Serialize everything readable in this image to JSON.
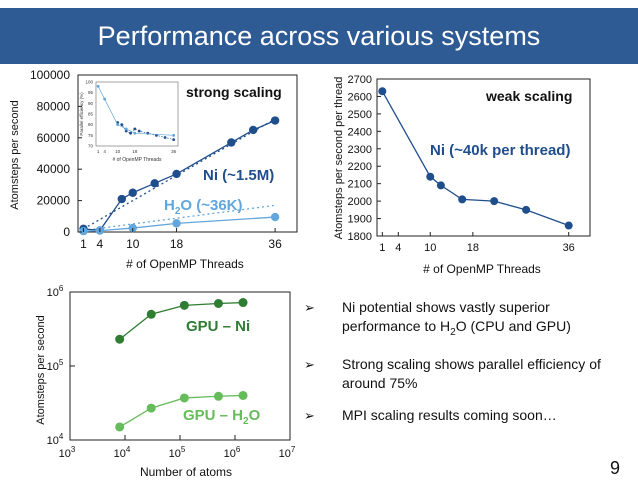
{
  "slide": {
    "title": "Performance across various systems",
    "page_number": "9",
    "accent_color": "#2f5b95"
  },
  "bullets": [
    {
      "icon": "arrow-bullet-icon",
      "pre": "Ni potential shows vastly superior performance to H",
      "sub": "2",
      "post": "O (CPU and GPU)"
    },
    {
      "icon": "arrow-bullet-icon",
      "pre": "Strong scaling shows parallel efficiency of around 75%",
      "sub": "",
      "post": ""
    },
    {
      "icon": "arrow-bullet-icon",
      "pre": "MPI scaling results coming soon…",
      "sub": "",
      "post": ""
    }
  ],
  "chart_data": [
    {
      "id": "strong",
      "type": "scatter",
      "title": "strong scaling",
      "xlabel": "# of OpenMP Threads",
      "ylabel": "Atomsteps per second",
      "xlim": [
        0,
        40
      ],
      "ylim": [
        0,
        100000
      ],
      "xticks": [
        1,
        4,
        10,
        18,
        36
      ],
      "yticks": [
        0,
        20000,
        40000,
        60000,
        80000,
        100000
      ],
      "grid": false,
      "series": [
        {
          "name": "Ni (~1.5M)",
          "color": "#1f4e8c",
          "x": [
            1,
            4,
            8,
            10,
            14,
            18,
            28,
            32,
            36
          ],
          "y": [
            2000,
            1000,
            21000,
            25000,
            31000,
            37000,
            57000,
            65000,
            71000
          ],
          "ideal": {
            "x": [
              1,
              36
            ],
            "y": [
              2000,
              72000
            ]
          }
        },
        {
          "name": "H₂O (~36K)",
          "name_pre": "H",
          "name_sub": "2",
          "name_post": "O (~36K)",
          "color": "#62a6dc",
          "x": [
            1,
            4,
            10,
            18,
            36
          ],
          "y": [
            500,
            900,
            2500,
            5500,
            9500
          ],
          "ideal": {
            "x": [
              1,
              36
            ],
            "y": [
              1000,
              17000
            ]
          }
        }
      ],
      "inset": {
        "type": "scatter",
        "xlabel": "# of OpenMP Threads",
        "ylabel": "Parallel efficiency (%)",
        "xlim": [
          0,
          38
        ],
        "ylim": [
          70,
          100
        ],
        "xticks": [
          1,
          4,
          10,
          18,
          36
        ],
        "yticks": [
          70,
          75,
          80,
          85,
          90,
          95,
          100
        ],
        "series": [
          {
            "name": "",
            "color": "#1f4e8c",
            "x": [
              10,
              12,
              14,
              16,
              18,
              20,
              24,
              28,
              32,
              36
            ],
            "y": [
              81,
              80,
              77,
              76,
              78,
              77,
              76,
              75,
              74,
              73
            ]
          },
          {
            "name": "",
            "color": "#62a6dc",
            "x": [
              1,
              4,
              10,
              14,
              18,
              36
            ],
            "y": [
              98,
              92,
              80,
              78,
              76,
              75
            ]
          }
        ]
      }
    },
    {
      "id": "weak",
      "type": "line",
      "title": "weak scaling",
      "xlabel": "# of OpenMP Threads",
      "ylabel": "Atomsteps per second per thread",
      "xlim": [
        0,
        40
      ],
      "ylim": [
        1800,
        2700
      ],
      "xticks": [
        1,
        4,
        10,
        18,
        36
      ],
      "yticks": [
        1800,
        1900,
        2000,
        2100,
        2200,
        2300,
        2400,
        2500,
        2600,
        2700
      ],
      "grid": false,
      "series": [
        {
          "name": "Ni (~40k per thread)",
          "color": "#1f4e8c",
          "x": [
            1,
            10,
            12,
            16,
            22,
            28,
            36
          ],
          "y": [
            2630,
            2140,
            2090,
            2010,
            2000,
            1950,
            1860
          ]
        }
      ]
    },
    {
      "id": "gpu",
      "type": "line",
      "title": "",
      "xlabel": "Number of atoms",
      "ylabel": "Atomsteps per second",
      "xscale": "log",
      "yscale": "log",
      "xlim": [
        1000,
        10000000
      ],
      "ylim": [
        10000,
        1000000
      ],
      "xticks": [
        3,
        4,
        5,
        6,
        7
      ],
      "yticks": [
        4,
        5,
        6
      ],
      "tick_base": "10",
      "grid": false,
      "series": [
        {
          "name": "GPU – Ni",
          "color": "#2e7d32",
          "x": [
            8000,
            30000,
            120000,
            500000,
            1400000
          ],
          "y": [
            230000,
            500000,
            660000,
            700000,
            720000
          ]
        },
        {
          "name": "GPU – H₂O",
          "name_pre": "GPU – H",
          "name_sub": "2",
          "name_post": "O",
          "color": "#66bb5a",
          "x": [
            8000,
            30000,
            120000,
            500000,
            1400000
          ],
          "y": [
            15000,
            27000,
            37000,
            39000,
            40000
          ]
        }
      ]
    }
  ]
}
